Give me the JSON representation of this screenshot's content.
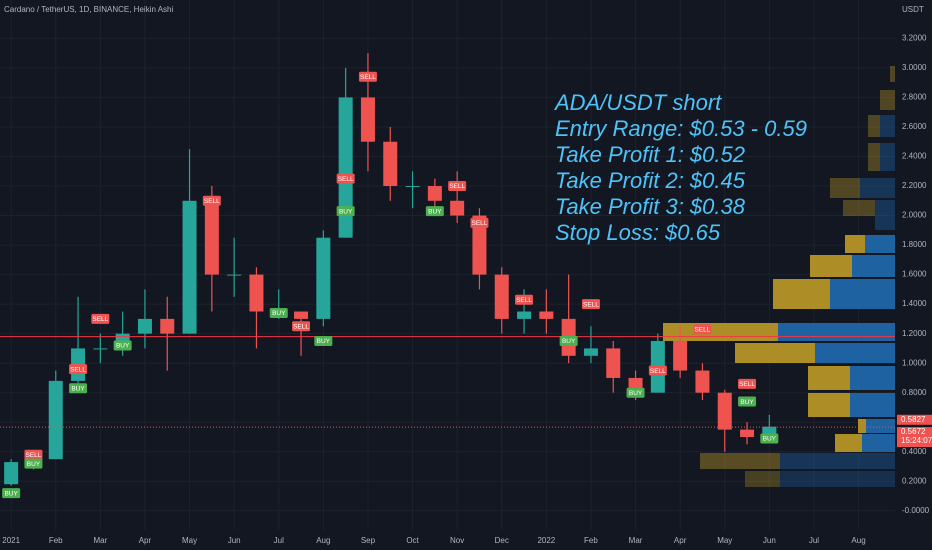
{
  "chart_data": {
    "type": "candlestick",
    "title": "Cardano / TetherUS, 1D, BINANCE, Heikin Ashi",
    "unit": "USDT",
    "colors": {
      "up": "#26a69a",
      "down": "#ef5350",
      "level": "#f23645",
      "note": "#4fc3f7"
    },
    "categories": [
      "2021",
      null,
      "Feb",
      null,
      "Mar",
      null,
      "Apr",
      null,
      "May",
      null,
      "Jun",
      null,
      "Jul",
      null,
      "Aug",
      null,
      "Sep",
      null,
      "Oct",
      null,
      "Nov",
      null,
      "Dec",
      null,
      "2022",
      null,
      "Feb",
      null,
      "Mar",
      null,
      "Apr",
      null,
      "May",
      null,
      "Jun",
      null,
      "Jul",
      null,
      "Aug",
      null
    ],
    "open": [
      0.18,
      0.33,
      0.35,
      0.88,
      1.1,
      1.1,
      1.2,
      1.3,
      1.2,
      2.1,
      1.6,
      1.6,
      1.35,
      1.35,
      1.3,
      1.85,
      2.8,
      2.5,
      2.2,
      2.2,
      2.1,
      2.0,
      1.6,
      1.3,
      1.35,
      1.3,
      1.05,
      1.1,
      0.9,
      0.8,
      1.15,
      0.95,
      0.8,
      0.55,
      0.5,
      null,
      null,
      null,
      null,
      null
    ],
    "high": [
      0.35,
      0.4,
      0.95,
      1.45,
      1.2,
      1.35,
      1.5,
      1.45,
      2.45,
      2.2,
      1.85,
      1.65,
      1.5,
      1.35,
      1.9,
      3.0,
      3.1,
      2.6,
      2.3,
      2.25,
      2.3,
      2.05,
      1.65,
      1.5,
      1.5,
      1.6,
      1.25,
      1.15,
      0.95,
      1.2,
      1.25,
      1.0,
      0.82,
      0.6,
      0.65,
      null,
      null,
      null,
      null,
      null
    ],
    "low": [
      0.17,
      0.28,
      0.35,
      0.8,
      1.0,
      1.05,
      1.1,
      0.95,
      1.2,
      1.35,
      1.45,
      1.1,
      1.3,
      1.05,
      1.25,
      1.85,
      2.3,
      2.1,
      2.05,
      2.0,
      1.95,
      1.5,
      1.2,
      1.2,
      1.2,
      1.0,
      1.0,
      0.8,
      0.75,
      0.8,
      0.9,
      0.75,
      0.4,
      0.45,
      0.48,
      null,
      null,
      null,
      null,
      null
    ],
    "close": [
      0.33,
      0.35,
      0.88,
      1.1,
      1.1,
      1.2,
      1.3,
      1.2,
      2.1,
      1.6,
      1.6,
      1.35,
      1.35,
      1.3,
      1.85,
      2.8,
      2.5,
      2.2,
      2.2,
      2.1,
      2.0,
      1.6,
      1.3,
      1.35,
      1.3,
      1.05,
      1.1,
      0.9,
      0.8,
      1.15,
      0.95,
      0.8,
      0.55,
      0.5,
      0.57,
      null,
      null,
      null,
      null,
      null
    ],
    "ylim": [
      -0.13,
      3.46
    ],
    "yticks": [
      {
        "value": 0,
        "label": "-0.0000"
      },
      {
        "value": 0.2,
        "label": "0.2000"
      },
      {
        "value": 0.4,
        "label": "0.4000"
      },
      {
        "value": 0.6,
        "label": "0.6000"
      },
      {
        "value": 0.8,
        "label": "0.8000"
      },
      {
        "value": 1.0,
        "label": "1.0000"
      },
      {
        "value": 1.2,
        "label": "1.2000"
      },
      {
        "value": 1.4,
        "label": "1.4000"
      },
      {
        "value": 1.6,
        "label": "1.6000"
      },
      {
        "value": 1.8,
        "label": "1.8000"
      },
      {
        "value": 2.0,
        "label": "2.0000"
      },
      {
        "value": 2.2,
        "label": "2.2000"
      },
      {
        "value": 2.4,
        "label": "2.4000"
      },
      {
        "value": 2.6,
        "label": "2.6000"
      },
      {
        "value": 2.8,
        "label": "2.8000"
      },
      {
        "value": 3.0,
        "label": "3.0000"
      },
      {
        "value": 3.2,
        "label": "3.2000"
      }
    ],
    "grid": true,
    "level": 1.18,
    "price_marks": [
      {
        "value": 0.5827,
        "label": "0.5827"
      },
      {
        "value": 0.5672,
        "label": "0.5672"
      }
    ],
    "countdown": "15:24:07",
    "signals": [
      {
        "label": "BUY",
        "at": 0,
        "price": 0.12
      },
      {
        "label": "SELL",
        "at": 1,
        "price": 0.38
      },
      {
        "label": "BUY",
        "at": 1,
        "price": 0.32
      },
      {
        "label": "SELL",
        "at": 3,
        "price": 0.96
      },
      {
        "label": "BUY",
        "at": 3,
        "price": 0.83
      },
      {
        "label": "SELL",
        "at": 4,
        "price": 1.3
      },
      {
        "label": "BUY",
        "at": 5,
        "price": 1.12
      },
      {
        "label": "SELL",
        "at": 9,
        "price": 2.1
      },
      {
        "label": "BUY",
        "at": 12,
        "price": 1.34
      },
      {
        "label": "SELL",
        "at": 13,
        "price": 1.25
      },
      {
        "label": "BUY",
        "at": 14,
        "price": 1.15
      },
      {
        "label": "SELL",
        "at": 16,
        "price": 2.94
      },
      {
        "label": "SELL",
        "at": 15,
        "price": 2.25
      },
      {
        "label": "BUY",
        "at": 15,
        "price": 2.03
      },
      {
        "label": "BUY",
        "at": 19,
        "price": 2.03
      },
      {
        "label": "SELL",
        "at": 20,
        "price": 2.2
      },
      {
        "label": "SELL",
        "at": 21,
        "price": 1.95
      },
      {
        "label": "SELL",
        "at": 23,
        "price": 1.43
      },
      {
        "label": "BUY",
        "at": 25,
        "price": 1.15
      },
      {
        "label": "SELL",
        "at": 26,
        "price": 1.4
      },
      {
        "label": "BUY",
        "at": 28,
        "price": 0.8
      },
      {
        "label": "SELL",
        "at": 29,
        "price": 0.95
      },
      {
        "label": "SELL",
        "at": 31,
        "price": 1.23
      },
      {
        "label": "SELL",
        "at": 33,
        "price": 0.86
      },
      {
        "label": "BUY",
        "at": 33,
        "price": 0.74
      },
      {
        "label": "BUY",
        "at": 34,
        "price": 0.49
      }
    ],
    "annotation": [
      "ADA/USDT short",
      "Entry Range: $0.53 - 0.59",
      "Take Profit  1: $0.52",
      "Take Profit  2: $0.45",
      "Take Profit  3: $0.38",
      "Stop Loss: $0.65"
    ]
  }
}
